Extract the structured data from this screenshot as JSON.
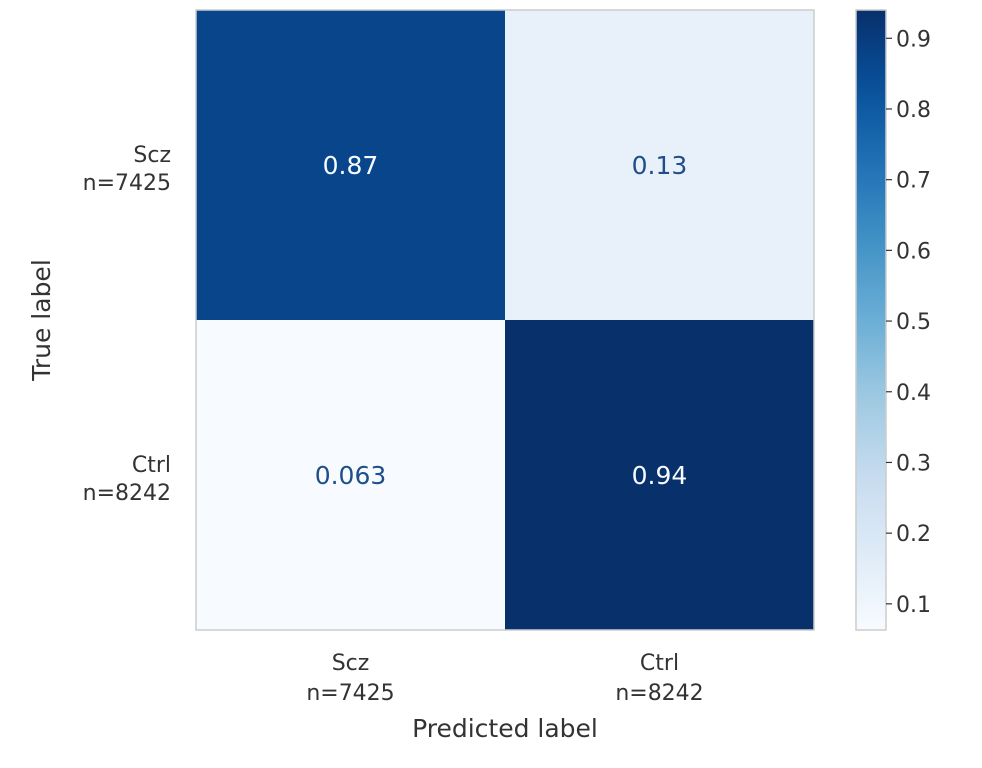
{
  "chart_data": {
    "type": "heatmap",
    "title": "",
    "xlabel": "Predicted label",
    "ylabel": "True label",
    "x_categories": [
      {
        "name": "Scz",
        "count": "n=7425"
      },
      {
        "name": "Ctrl",
        "count": "n=8242"
      }
    ],
    "y_categories": [
      {
        "name": "Scz",
        "count": "n=7425"
      },
      {
        "name": "Ctrl",
        "count": "n=8242"
      }
    ],
    "values": [
      [
        0.87,
        0.13
      ],
      [
        0.063,
        0.94
      ]
    ],
    "cell_labels": [
      [
        "0.87",
        "0.13"
      ],
      [
        "0.063",
        "0.94"
      ]
    ],
    "colormap": "Blues",
    "colorbar": {
      "range": [
        0.063,
        0.94
      ],
      "ticks": [
        0.1,
        0.2,
        0.3,
        0.4,
        0.5,
        0.6,
        0.7,
        0.8,
        0.9
      ],
      "tick_labels": [
        "0.1",
        "0.2",
        "0.3",
        "0.4",
        "0.5",
        "0.6",
        "0.7",
        "0.8",
        "0.9"
      ]
    },
    "grid": false,
    "legend": "none"
  }
}
